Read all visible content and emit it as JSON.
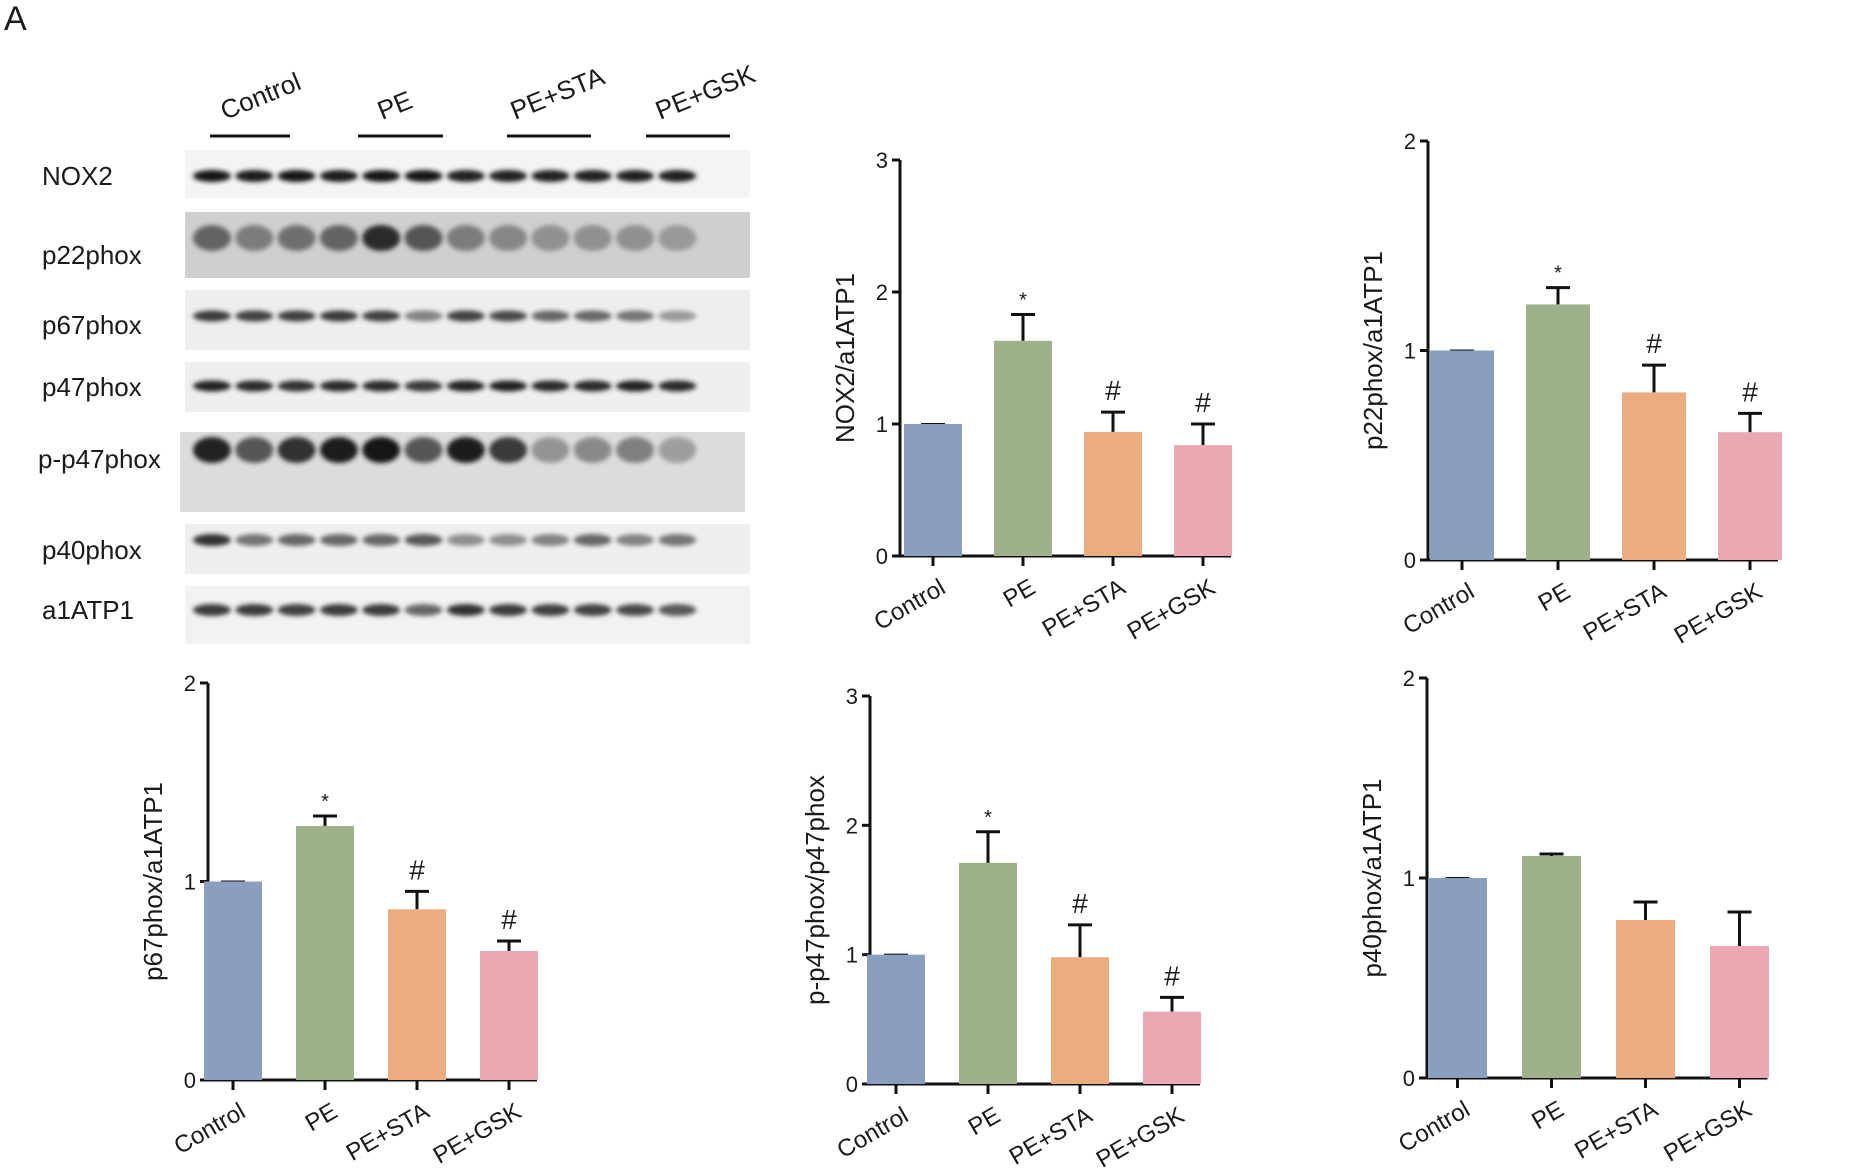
{
  "panel_label": "A",
  "blot": {
    "groups": [
      "Control",
      "PE",
      "PE+STA",
      "PE+GSK"
    ],
    "rows": [
      "NOX2",
      "p22phox",
      "p67phox",
      "p47phox",
      "p-p47phox",
      "p40phox",
      "a1ATP1"
    ]
  },
  "chart_data": [
    {
      "type": "bar",
      "categories": [
        "Control",
        "PE",
        "PE+STA",
        "PE+GSK"
      ],
      "values": [
        1.0,
        1.63,
        0.94,
        0.84
      ],
      "errors": [
        0,
        0.2,
        0.15,
        0.16
      ],
      "annotations": [
        "",
        "*",
        "#",
        "#"
      ],
      "colors": [
        "#8a9fbf",
        "#9db28a",
        "#ebad80",
        "#eaa9b2"
      ],
      "ylabel": "NOX2/a1ATP1",
      "ylim": [
        0,
        3
      ],
      "yticks": [
        "0",
        "1",
        "2",
        "3"
      ]
    },
    {
      "type": "bar",
      "categories": [
        "Control",
        "PE",
        "PE+STA",
        "PE+GSK"
      ],
      "values": [
        1.0,
        1.22,
        0.8,
        0.61
      ],
      "errors": [
        0,
        0.08,
        0.13,
        0.09
      ],
      "annotations": [
        "",
        "*",
        "#",
        "#"
      ],
      "colors": [
        "#8a9fbf",
        "#9db28a",
        "#ebad80",
        "#eaa9b2"
      ],
      "ylabel": "p22phox/a1ATP1",
      "ylim": [
        0,
        2
      ],
      "yticks": [
        "0",
        "1",
        "2"
      ]
    },
    {
      "type": "bar",
      "categories": [
        "Control",
        "PE",
        "PE+STA",
        "PE+GSK"
      ],
      "values": [
        1.0,
        1.28,
        0.86,
        0.65
      ],
      "errors": [
        0,
        0.05,
        0.09,
        0.05
      ],
      "annotations": [
        "",
        "*",
        "#",
        "#"
      ],
      "colors": [
        "#8a9fbf",
        "#9db28a",
        "#ebad80",
        "#eaa9b2"
      ],
      "ylabel": "p67phox/a1ATP1",
      "ylim": [
        0,
        2
      ],
      "yticks": [
        "0",
        "1",
        "2"
      ]
    },
    {
      "type": "bar",
      "categories": [
        "Control",
        "PE",
        "PE+STA",
        "PE+GSK"
      ],
      "values": [
        1.0,
        1.71,
        0.98,
        0.56
      ],
      "errors": [
        0,
        0.24,
        0.25,
        0.11
      ],
      "annotations": [
        "",
        "*",
        "#",
        "#"
      ],
      "colors": [
        "#8a9fbf",
        "#9db28a",
        "#ebad80",
        "#eaa9b2"
      ],
      "ylabel": "p-p47phox/p47phox",
      "ylim": [
        0,
        3
      ],
      "yticks": [
        "0",
        "1",
        "2",
        "3"
      ]
    },
    {
      "type": "bar",
      "categories": [
        "Control",
        "PE",
        "PE+STA",
        "PE+GSK"
      ],
      "values": [
        1.0,
        1.11,
        0.79,
        0.66
      ],
      "errors": [
        0,
        0.01,
        0.09,
        0.17
      ],
      "annotations": [
        "",
        "",
        "",
        ""
      ],
      "colors": [
        "#8a9fbf",
        "#9db28a",
        "#ebad80",
        "#eaa9b2"
      ],
      "ylabel": "p40phox/a1ATP1",
      "ylim": [
        0,
        2
      ],
      "yticks": [
        "0",
        "1",
        "2"
      ]
    }
  ]
}
